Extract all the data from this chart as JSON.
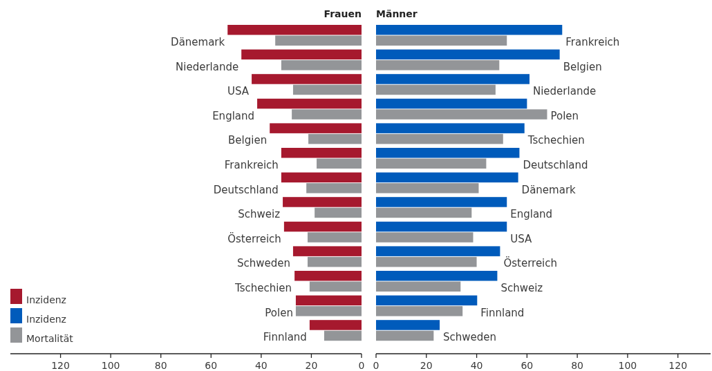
{
  "chart_data": [
    {
      "type": "bar",
      "title": "Frauen",
      "orientation": "horizontal",
      "legend": "bottom left",
      "categories": [
        "Dänemark",
        "Niederlande",
        "USA",
        "England",
        "Belgien",
        "Frankreich",
        "Deutschland",
        "Schweiz",
        "Österreich",
        "Schweden",
        "Tschechien",
        "Polen",
        "Finnland"
      ],
      "series": [
        {
          "name": "Inzidenz",
          "color": "#a6192e",
          "values": [
            53.4,
            47.9,
            43.8,
            41.6,
            36.6,
            32,
            32,
            31.4,
            30.9,
            27.3,
            26.7,
            26.2,
            20.7
          ]
        },
        {
          "name": "Mortalität",
          "color": "#939598",
          "values": [
            34.4,
            32,
            27.3,
            27.8,
            21.2,
            17.9,
            22,
            18.7,
            21.5,
            21.5,
            20.7,
            26.2,
            14.9
          ]
        }
      ],
      "xlim": [
        140,
        0
      ],
      "xticks": [
        120,
        100,
        80,
        60,
        40,
        20,
        0
      ]
    },
    {
      "type": "bar",
      "title": "Männer",
      "orientation": "horizontal",
      "legend": "bottom left",
      "categories": [
        "Frankreich",
        "Belgien",
        "Niederlande",
        "Polen",
        "Tschechien",
        "Deutschland",
        "Dänemark",
        "England",
        "USA",
        "Österreich",
        "Schweiz",
        "Finnland",
        "Schweden"
      ],
      "series": [
        {
          "name": "Inzidenz",
          "color": "#005bbb",
          "values": [
            74,
            73,
            61,
            60,
            59,
            57,
            56.5,
            52,
            52,
            49.3,
            48.2,
            40.2,
            25.3
          ]
        },
        {
          "name": "Mortalität",
          "color": "#939598",
          "values": [
            52,
            49,
            47.5,
            68,
            50.5,
            43.8,
            40.8,
            38,
            38.6,
            40,
            33.6,
            34.4,
            22.9
          ]
        }
      ],
      "xlim": [
        0,
        133
      ],
      "xticks": [
        0,
        20,
        40,
        60,
        80,
        100,
        120
      ]
    }
  ]
}
